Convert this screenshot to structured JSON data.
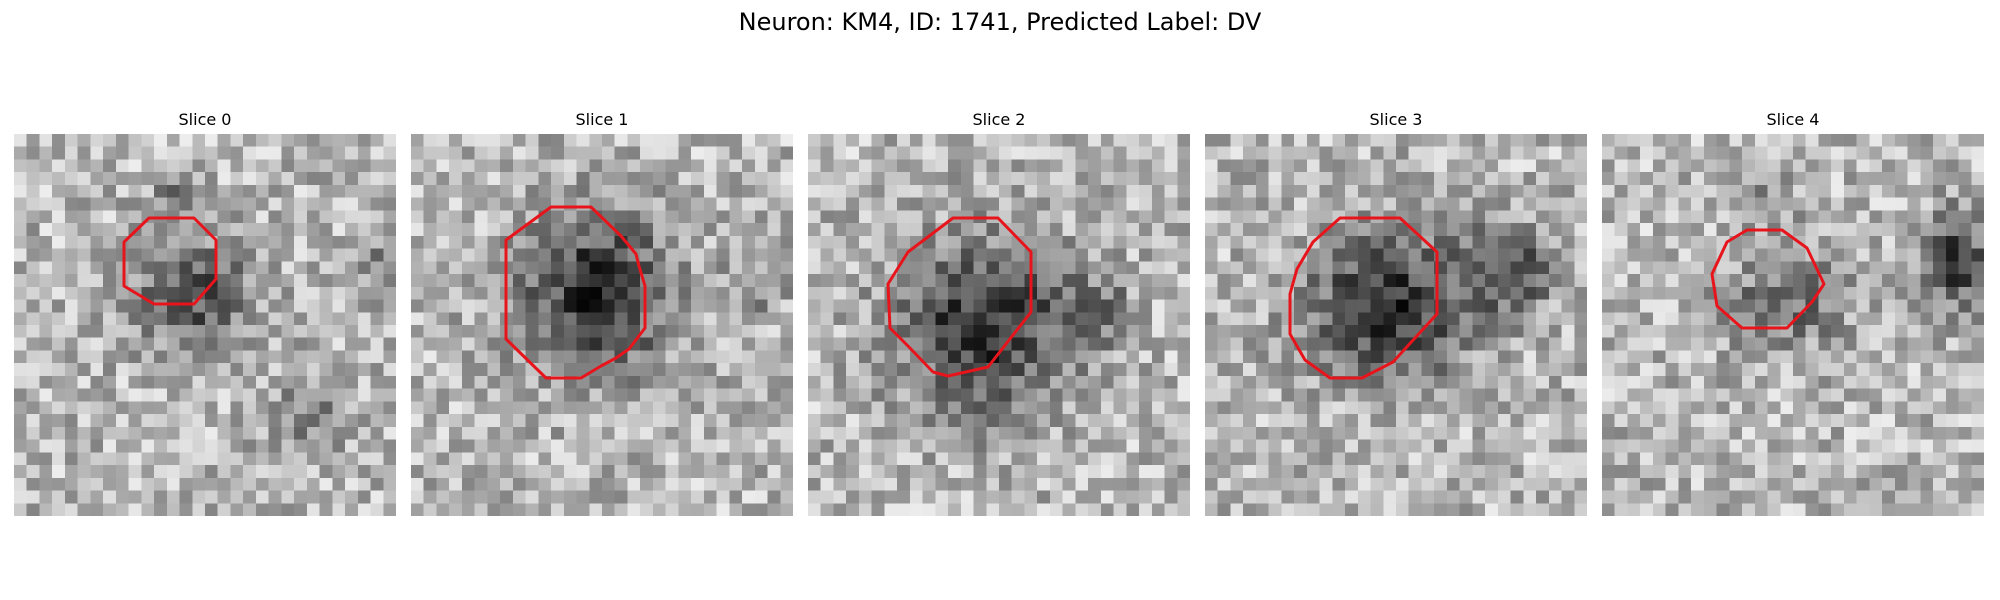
{
  "figure": {
    "title": "Neuron: KM4, ID: 1741, Predicted Label: DV"
  },
  "colors": {
    "background": "#ffffff",
    "contour": "#e8141c",
    "image_colormap": "grayscale"
  },
  "panels": [
    {
      "title": "Slice 0"
    },
    {
      "title": "Slice 1"
    },
    {
      "title": "Slice 2"
    },
    {
      "title": "Slice 3"
    },
    {
      "title": "Slice 4"
    }
  ]
}
